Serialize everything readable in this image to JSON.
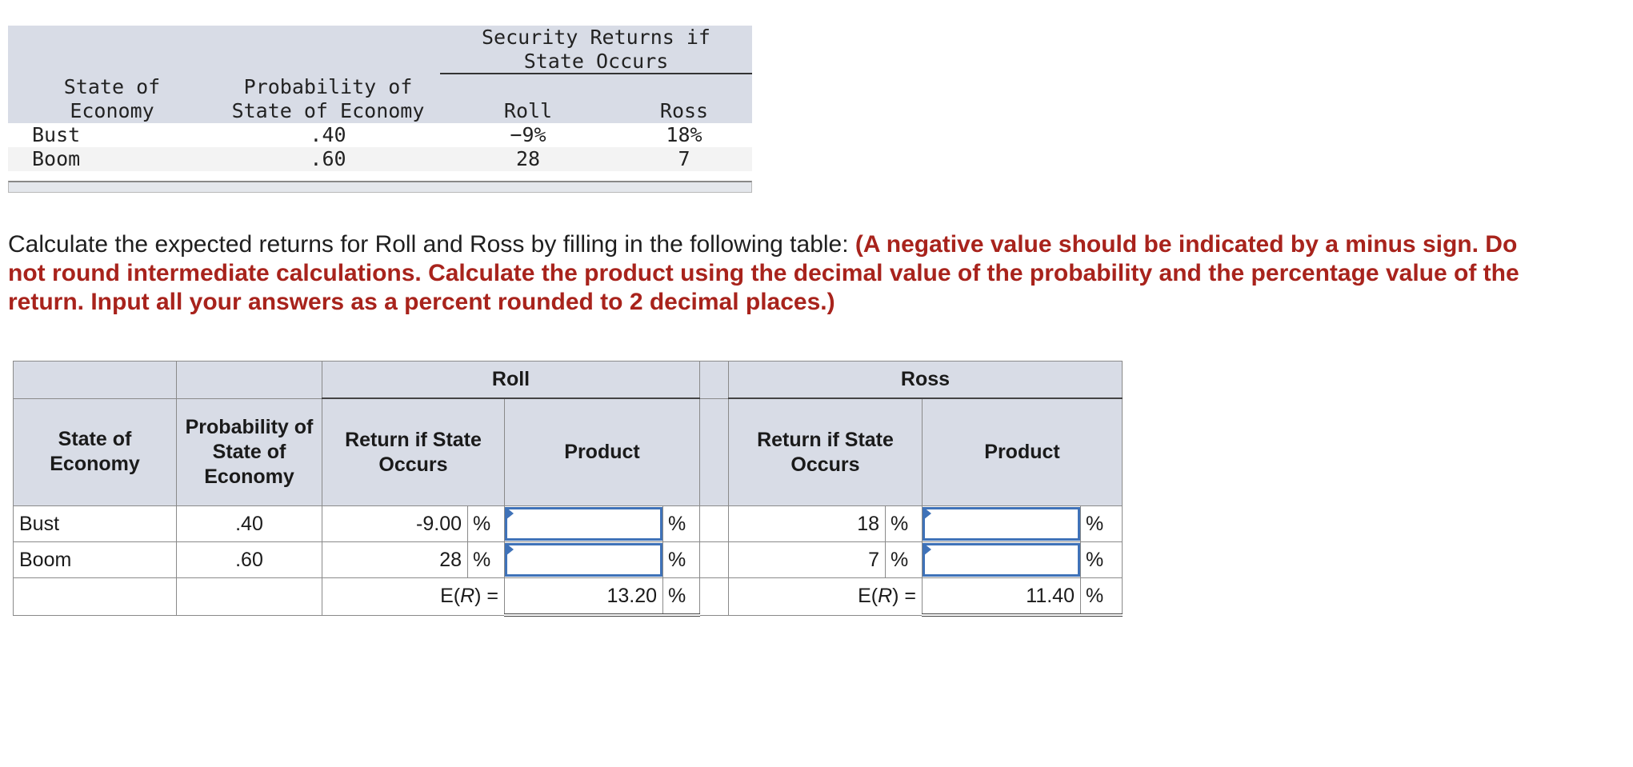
{
  "given_table": {
    "header_group": "Security Returns if\nState Occurs",
    "col_state": "State of\nEconomy",
    "col_prob": "Probability of\nState of Economy",
    "col_roll": "Roll",
    "col_ross": "Ross",
    "rows": [
      {
        "state": "Bust",
        "prob": ".40",
        "roll": "−9%",
        "ross": "18%"
      },
      {
        "state": "Boom",
        "prob": ".60",
        "roll": "28",
        "ross": "7"
      }
    ]
  },
  "instructions": {
    "plain": "Calculate the expected returns for Roll and Ross by filling in the following table: ",
    "bold": "(A negative value should be indicated by a minus sign. Do not round intermediate calculations. Calculate the product using the decimal value of the probability and the percentage value of the return. Input all your answers as a percent rounded to 2 decimal places.)"
  },
  "answer_table": {
    "group_roll": "Roll",
    "group_ross": "Ross",
    "h_state": "State of Economy",
    "h_prob": "Probability of State of Economy",
    "h_return": "Return if State Occurs",
    "h_product": "Product",
    "pct": "%",
    "rows": [
      {
        "state": "Bust",
        "prob": ".40",
        "roll_return": "-9.00",
        "ross_return": "18"
      },
      {
        "state": "Boom",
        "prob": ".60",
        "roll_return": "28",
        "ross_return": "7"
      }
    ],
    "er_label_pre": "E(",
    "er_label_var": "R",
    "er_label_post": ") =",
    "roll_er": "13.20",
    "ross_er": "11.40"
  }
}
